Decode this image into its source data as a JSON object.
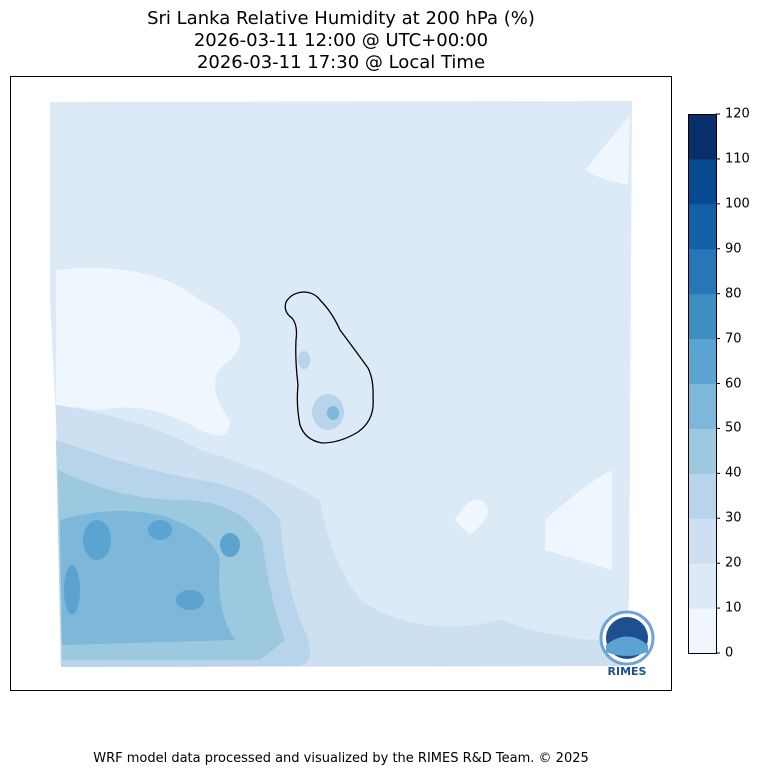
{
  "chart_data": {
    "type": "contour",
    "title": [
      "Sri Lanka Relative Humidity at 200 hPa (%)",
      "2026-03-11 12:00 @ UTC+00:00",
      "2026-03-11 17:30 @ Local Time"
    ],
    "colorbar": {
      "levels": [
        0,
        10,
        20,
        30,
        40,
        50,
        60,
        70,
        80,
        90,
        100,
        110,
        120
      ],
      "tick_labels": [
        "0",
        "10",
        "20",
        "30",
        "40",
        "50",
        "60",
        "70",
        "80",
        "90",
        "100",
        "110",
        "120"
      ],
      "colors": [
        "#f0f6fd",
        "#dce9f6",
        "#cde0f1",
        "#b7d4ea",
        "#9cc9e0",
        "#7db8da",
        "#5ba3d0",
        "#3e8ec4",
        "#2676b8",
        "#1460a8",
        "#084a91",
        "#08306b"
      ],
      "colormap": "Blues"
    },
    "dominant_range": "10-20",
    "higher_humidity_region": "southwest, up to 60-70"
  },
  "logo": {
    "text": "RIMES"
  },
  "footer": "WRF model data processed and visualized by the RIMES R&D Team. © 2025"
}
